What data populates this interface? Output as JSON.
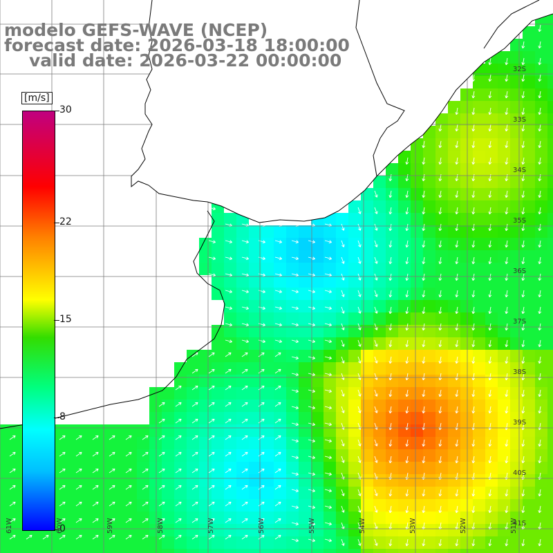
{
  "title": {
    "line1": "modelo GEFS-WAVE (NCEP)",
    "line2": "forecast date: 2026-03-18 18:00:00",
    "line3": "valid date: 2026-03-22 00:00:00"
  },
  "colorbar": {
    "unit": "[m/s]",
    "ticks": [
      "30",
      "22",
      "15",
      "8",
      "0"
    ],
    "tick_values": [
      30,
      22,
      15,
      8,
      0
    ],
    "colors": [
      "#0000ff",
      "#00bfff",
      "#00ffff",
      "#00ff80",
      "#33dd00",
      "#ffff00",
      "#ff8000",
      "#ff0000",
      "#c00080"
    ]
  },
  "map": {
    "lat_labels": [
      "32S",
      "33S",
      "34S",
      "35S",
      "36S",
      "37S",
      "38S",
      "39S",
      "40S",
      "41S"
    ],
    "lon_labels": [
      "61W",
      "60W",
      "59W",
      "58W",
      "57W",
      "56W",
      "55W",
      "54W",
      "53W",
      "52W",
      "51W"
    ],
    "land_color": "#ffffff",
    "coast_color": "#000000",
    "grid_color": "#7a7a7a",
    "arrow_color": "#ffffff"
  }
}
